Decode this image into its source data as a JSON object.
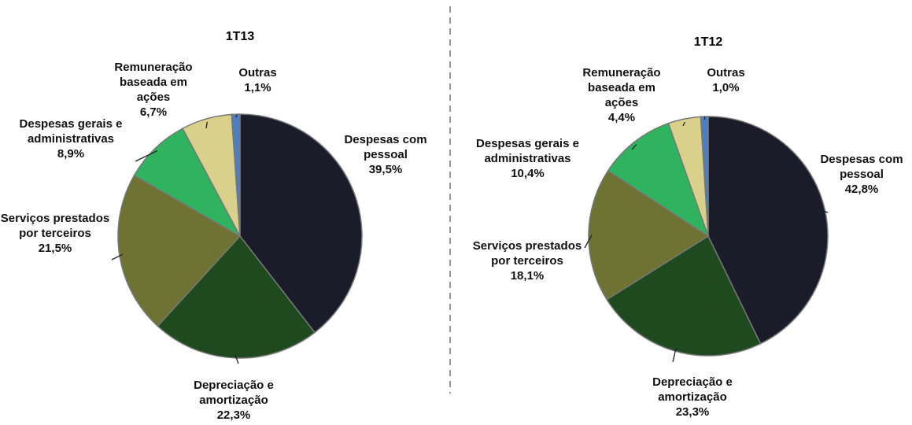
{
  "chart_data": [
    {
      "type": "pie",
      "title": "1T13",
      "categories": [
        "Despesas com pessoal",
        "Depreciação e amortização",
        "Serviços prestados por terceiros",
        "Despesas gerais e administrativas",
        "Remuneração baseada em ações",
        "Outras"
      ],
      "values": [
        39.5,
        22.3,
        21.5,
        8.9,
        6.7,
        1.1
      ],
      "value_labels": [
        "39,5%",
        "22,3%",
        "21,5%",
        "8,9%",
        "6,7%",
        "1,1%"
      ],
      "colors": [
        "#1b1c2a",
        "#1f4a1f",
        "#6e7333",
        "#2fb35e",
        "#d9d08c",
        "#4a7fc2"
      ]
    },
    {
      "type": "pie",
      "title": "1T12",
      "categories": [
        "Despesas com pessoal",
        "Depreciação e amortização",
        "Serviços prestados por terceiros",
        "Despesas gerais e administrativas",
        "Remuneração baseada em ações",
        "Outras"
      ],
      "values": [
        42.8,
        23.3,
        18.1,
        10.4,
        4.4,
        1.0
      ],
      "value_labels": [
        "42,8%",
        "23,3%",
        "18,1%",
        "10,4%",
        "4,4%",
        "1,0%"
      ],
      "colors": [
        "#1b1c2a",
        "#1f4a1f",
        "#6e7333",
        "#2fb35e",
        "#d9d08c",
        "#4a7fc2"
      ]
    }
  ]
}
